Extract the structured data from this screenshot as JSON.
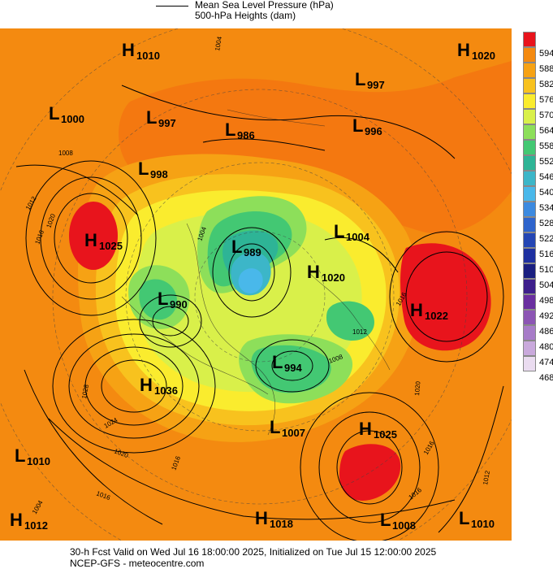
{
  "legend": {
    "line1": "Mean Sea Level Pressure (hPa)",
    "line2": "500-hPa Heights (dam)"
  },
  "colorbar": {
    "labels": [
      "594",
      "588",
      "582",
      "576",
      "570",
      "564",
      "558",
      "552",
      "546",
      "540",
      "534",
      "528",
      "522",
      "516",
      "510",
      "504",
      "498",
      "492",
      "486",
      "480",
      "474",
      "468"
    ],
    "colors": [
      "#e8141c",
      "#f48a10",
      "#f6a214",
      "#f8c21e",
      "#faec2e",
      "#d9f04a",
      "#8ddf5a",
      "#43c873",
      "#2eb496",
      "#3cb6c8",
      "#49b8ea",
      "#3c8ae0",
      "#2e64cc",
      "#2446b4",
      "#1e30a0",
      "#1a1f80",
      "#3e1f8c",
      "#6a2fa0",
      "#8c55b4",
      "#a77cc8",
      "#c9a9dc",
      "#eadcf0"
    ]
  },
  "pressure_centers": [
    {
      "type": "H",
      "value": "1010"
    },
    {
      "type": "H",
      "value": "1020"
    },
    {
      "type": "L",
      "value": "1000"
    },
    {
      "type": "L",
      "value": "997"
    },
    {
      "type": "L",
      "value": "986"
    },
    {
      "type": "L",
      "value": "997"
    },
    {
      "type": "L",
      "value": "996"
    },
    {
      "type": "L",
      "value": "998"
    },
    {
      "type": "H",
      "value": "1025"
    },
    {
      "type": "L",
      "value": "989"
    },
    {
      "type": "L",
      "value": "1004"
    },
    {
      "type": "H",
      "value": "1020"
    },
    {
      "type": "L",
      "value": "990"
    },
    {
      "type": "H",
      "value": "1022"
    },
    {
      "type": "L",
      "value": "994"
    },
    {
      "type": "H",
      "value": "1036"
    },
    {
      "type": "L",
      "value": "1007"
    },
    {
      "type": "H",
      "value": "1025"
    },
    {
      "type": "L",
      "value": "1010"
    },
    {
      "type": "H",
      "value": "1012"
    },
    {
      "type": "H",
      "value": "1018"
    },
    {
      "type": "L",
      "value": "1008"
    },
    {
      "type": "L",
      "value": "1010"
    }
  ],
  "contour_labels": [
    "1004",
    "1008",
    "1012",
    "1020",
    "1016",
    "1024",
    "1028",
    "1020",
    "1016",
    "1016",
    "1020",
    "1016",
    "1012",
    "1016",
    "1012",
    "1016",
    "1008",
    "1004",
    "1004"
  ],
  "footer": {
    "line1": "30-h Fcst Valid on Wed Jul 16 18:00:00 2025, Initialized on Tue Jul 15 12:00:00 2025",
    "line2": "NCEP-GFS  - meteocentre.com"
  }
}
